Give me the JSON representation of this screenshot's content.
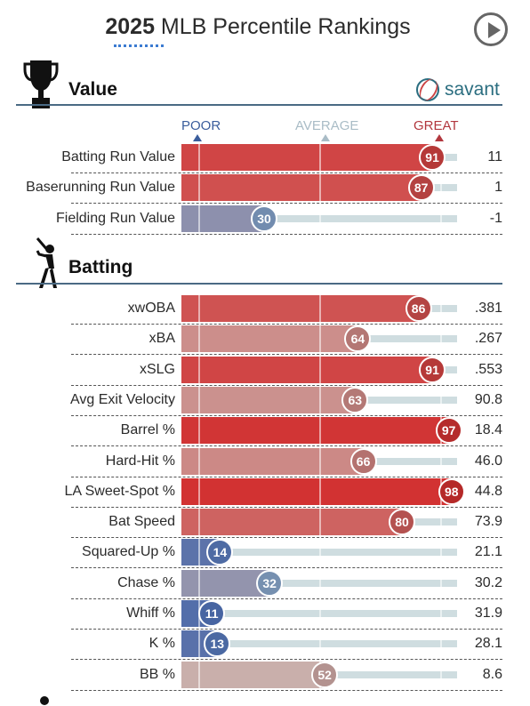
{
  "header": {
    "title_bold": "2025",
    "title_rest": " MLB Percentile Rankings",
    "play_icon": "play-circle-icon"
  },
  "brand": {
    "name": "savant",
    "icon": "baseball-icon",
    "color": "#2b6e80"
  },
  "scale": {
    "poor": "POOR",
    "average": "AVERAGE",
    "great": "GREAT",
    "poor_color": "#3a5d9c",
    "average_color": "#a9bcc6",
    "great_color": "#b2373e"
  },
  "colors": {
    "great": "#d22d2d",
    "poor": "#325aa8",
    "mid": "#c9b4b0",
    "track": "#cfdde0",
    "rule": "#4a6a84"
  },
  "chart_data": {
    "type": "bar",
    "title": "2025 MLB Percentile Rankings",
    "xlim": [
      0,
      100
    ],
    "sections": [
      {
        "name": "Value",
        "icon": "trophy-icon",
        "rows": [
          {
            "label": "Batting Run Value",
            "percentile": 91,
            "value": "11"
          },
          {
            "label": "Baserunning Run Value",
            "percentile": 87,
            "value": "1"
          },
          {
            "label": "Fielding Run Value",
            "percentile": 30,
            "value": "-1"
          }
        ]
      },
      {
        "name": "Batting",
        "icon": "batter-icon",
        "rows": [
          {
            "label": "xwOBA",
            "percentile": 86,
            "value": ".381"
          },
          {
            "label": "xBA",
            "percentile": 64,
            "value": ".267"
          },
          {
            "label": "xSLG",
            "percentile": 91,
            "value": ".553"
          },
          {
            "label": "Avg Exit Velocity",
            "percentile": 63,
            "value": "90.8"
          },
          {
            "label": "Barrel %",
            "percentile": 97,
            "value": "18.4"
          },
          {
            "label": "Hard-Hit %",
            "percentile": 66,
            "value": "46.0"
          },
          {
            "label": "LA Sweet-Spot %",
            "percentile": 98,
            "value": "44.8"
          },
          {
            "label": "Bat Speed",
            "percentile": 80,
            "value": "73.9"
          },
          {
            "label": "Squared-Up %",
            "percentile": 14,
            "value": "21.1"
          },
          {
            "label": "Chase %",
            "percentile": 32,
            "value": "30.2"
          },
          {
            "label": "Whiff %",
            "percentile": 11,
            "value": "31.9"
          },
          {
            "label": "K %",
            "percentile": 13,
            "value": "28.1"
          },
          {
            "label": "BB %",
            "percentile": 52,
            "value": "8.6"
          }
        ]
      }
    ]
  }
}
